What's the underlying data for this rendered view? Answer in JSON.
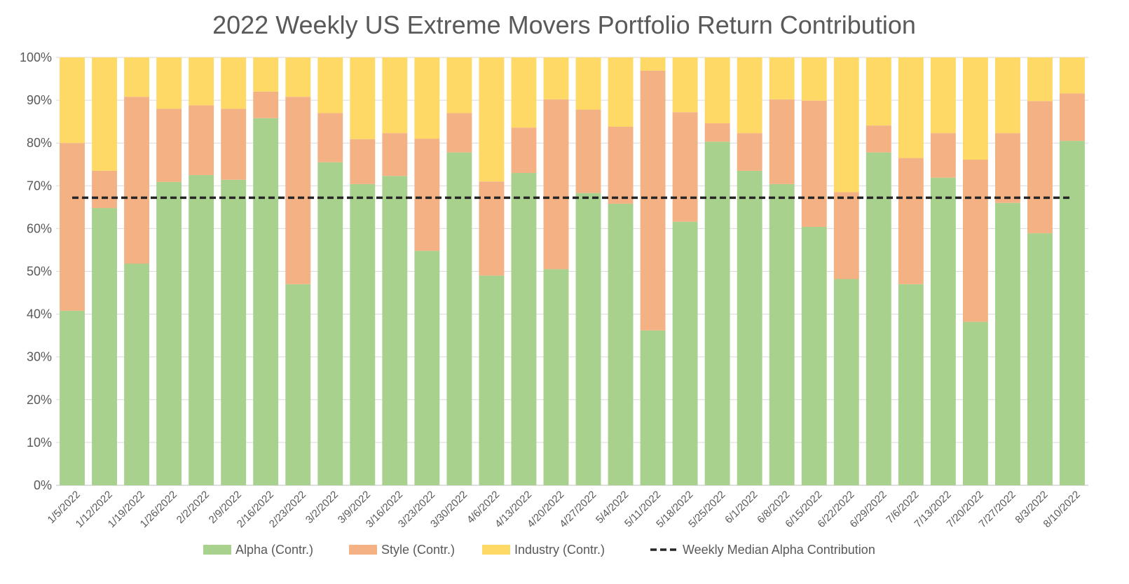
{
  "chart_data": {
    "type": "bar",
    "stacked": true,
    "title": "2022 Weekly US Extreme Movers Portfolio Return Contribution",
    "xlabel": "",
    "ylabel": "",
    "ylim": [
      0,
      100
    ],
    "y_ticks": [
      "0%",
      "10%",
      "20%",
      "30%",
      "40%",
      "50%",
      "60%",
      "70%",
      "80%",
      "90%",
      "100%"
    ],
    "grid": true,
    "legend_position": "bottom",
    "categories": [
      "1/5/2022",
      "1/12/2022",
      "1/19/2022",
      "1/26/2022",
      "2/2/2022",
      "2/9/2022",
      "2/16/2022",
      "2/23/2022",
      "3/2/2022",
      "3/9/2022",
      "3/16/2022",
      "3/23/2022",
      "3/30/2022",
      "4/6/2022",
      "4/13/2022",
      "4/20/2022",
      "4/27/2022",
      "5/4/2022",
      "5/11/2022",
      "5/18/2022",
      "5/25/2022",
      "6/1/2022",
      "6/8/2022",
      "6/15/2022",
      "6/22/2022",
      "6/29/2022",
      "7/6/2022",
      "7/13/2022",
      "7/20/2022",
      "7/27/2022",
      "8/3/2022",
      "8/10/2022"
    ],
    "series": [
      {
        "name": "Alpha (Contr.)",
        "color": "#a9d18e",
        "values": [
          40.8,
          64.8,
          51.8,
          70.9,
          72.5,
          71.4,
          85.8,
          47.0,
          75.5,
          70.4,
          72.3,
          54.8,
          77.8,
          49.0,
          73.0,
          50.5,
          68.3,
          65.8,
          36.2,
          61.6,
          80.3,
          73.5,
          70.4,
          60.4,
          48.2,
          77.8,
          47.0,
          71.9,
          38.2,
          66.0,
          58.9,
          80.5
        ]
      },
      {
        "name": "Style (Contr.)",
        "color": "#f4b183",
        "values": [
          39.2,
          8.7,
          39.0,
          17.1,
          16.3,
          16.6,
          6.2,
          43.8,
          11.5,
          10.5,
          10.0,
          26.2,
          9.2,
          22.0,
          10.6,
          39.7,
          19.5,
          18.0,
          60.7,
          25.6,
          4.3,
          8.8,
          19.8,
          29.5,
          20.3,
          6.3,
          29.5,
          10.4,
          37.9,
          16.3,
          30.9,
          11.1
        ]
      },
      {
        "name": "Industry (Contr.)",
        "color": "#ffd966",
        "values": [
          20.0,
          26.5,
          9.2,
          12.0,
          11.2,
          12.0,
          8.0,
          9.2,
          13.0,
          19.1,
          17.7,
          19.0,
          13.0,
          29.0,
          16.4,
          9.8,
          12.2,
          16.2,
          3.1,
          12.8,
          15.4,
          17.7,
          9.8,
          10.1,
          31.5,
          15.9,
          23.5,
          17.7,
          23.9,
          17.7,
          10.2,
          8.4
        ]
      }
    ],
    "reference_line": {
      "name": "Weekly Median Alpha Contribution",
      "value": 67.2,
      "color": "#262626"
    }
  }
}
